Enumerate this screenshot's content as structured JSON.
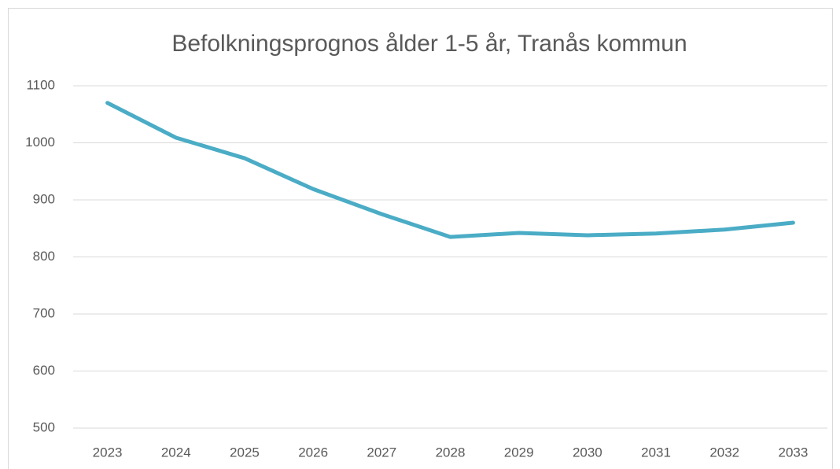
{
  "chart_data": {
    "type": "line",
    "title": "Befolkningsprognos ålder 1-5 år, Tranås kommun",
    "categories": [
      "2023",
      "2024",
      "2025",
      "2026",
      "2027",
      "2028",
      "2029",
      "2030",
      "2031",
      "2032",
      "2033"
    ],
    "series": [
      {
        "name": "Befolkningsprognos",
        "color": "#4bacc6",
        "values": [
          1070,
          1009,
          973,
          919,
          875,
          835,
          842,
          838,
          841,
          848,
          860
        ]
      }
    ],
    "ylim": [
      500,
      1100
    ],
    "yticks": [
      500,
      600,
      700,
      800,
      900,
      1000,
      1100
    ],
    "grid": true
  }
}
